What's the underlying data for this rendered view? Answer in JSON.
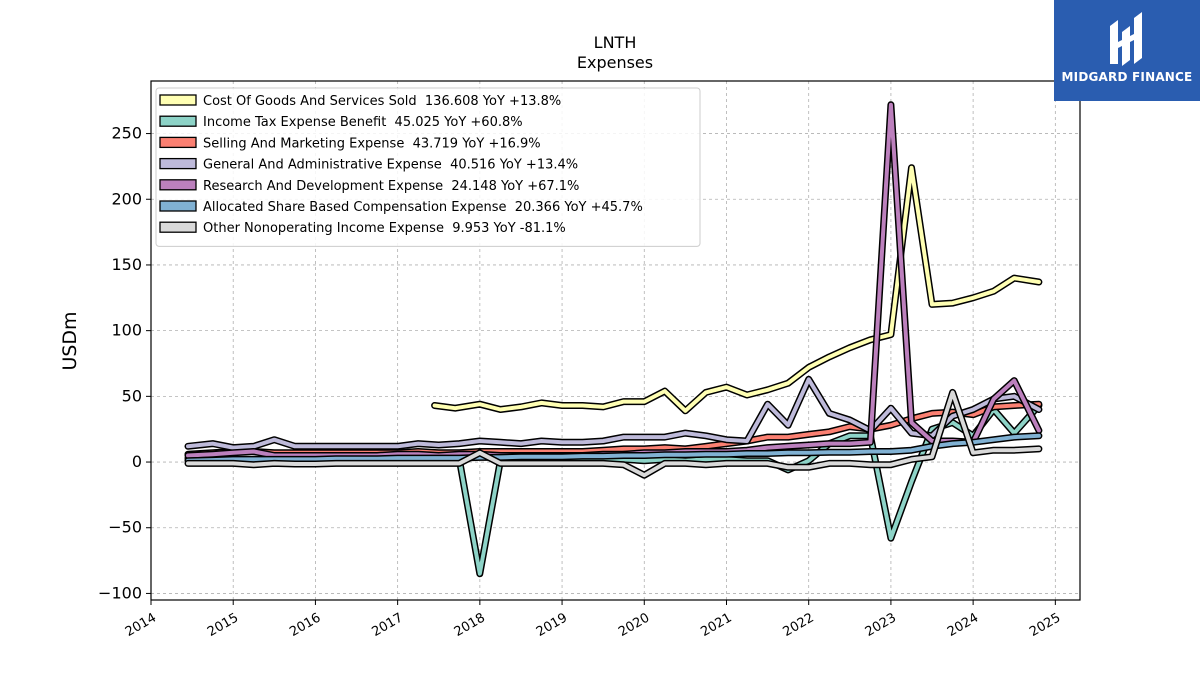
{
  "chart_data": {
    "type": "line",
    "title": "LNTH",
    "subtitle": "Expenses",
    "ylabel": "USDm",
    "xlabel": "",
    "x_ticks": [
      "2014",
      "2015",
      "2016",
      "2017",
      "2018",
      "2019",
      "2020",
      "2021",
      "2022",
      "2023",
      "2024",
      "2025"
    ],
    "y_ticks": [
      "250",
      "200",
      "150",
      "100",
      "50",
      "0",
      "−50",
      "−100"
    ],
    "xlim": [
      2014.0,
      2025.3
    ],
    "ylim": [
      -105,
      290
    ],
    "grid": true,
    "legend_position": "top-left",
    "series": [
      {
        "name": "Cost Of Goods And Services Sold",
        "legend": "Cost Of Goods And Services Sold  136.608 YoY +13.8%",
        "color": "#ffffb3",
        "points": [
          [
            2017.45,
            43
          ],
          [
            2017.7,
            41
          ],
          [
            2018.0,
            44
          ],
          [
            2018.25,
            40
          ],
          [
            2018.5,
            42
          ],
          [
            2018.75,
            45
          ],
          [
            2019.0,
            43
          ],
          [
            2019.25,
            43
          ],
          [
            2019.5,
            42
          ],
          [
            2019.75,
            46
          ],
          [
            2020.0,
            46
          ],
          [
            2020.25,
            54
          ],
          [
            2020.5,
            39
          ],
          [
            2020.75,
            53
          ],
          [
            2021.0,
            57
          ],
          [
            2021.25,
            51
          ],
          [
            2021.5,
            55
          ],
          [
            2021.75,
            60
          ],
          [
            2022.0,
            72
          ],
          [
            2022.25,
            80
          ],
          [
            2022.5,
            87
          ],
          [
            2022.75,
            93
          ],
          [
            2023.0,
            97
          ],
          [
            2023.25,
            224
          ],
          [
            2023.5,
            120
          ],
          [
            2023.75,
            121
          ],
          [
            2024.0,
            125
          ],
          [
            2024.25,
            130
          ],
          [
            2024.5,
            140
          ],
          [
            2024.8,
            137
          ]
        ]
      },
      {
        "name": "Income Tax Expense Benefit",
        "legend": "Income Tax Expense Benefit  45.025 YoY +60.8%",
        "color": "#8dd3c7",
        "points": [
          [
            2014.45,
            3
          ],
          [
            2014.75,
            2
          ],
          [
            2015.0,
            1
          ],
          [
            2015.25,
            2
          ],
          [
            2015.5,
            1
          ],
          [
            2015.75,
            1
          ],
          [
            2016.0,
            1
          ],
          [
            2016.25,
            2
          ],
          [
            2016.5,
            1
          ],
          [
            2016.75,
            2
          ],
          [
            2017.0,
            2
          ],
          [
            2017.25,
            1
          ],
          [
            2017.5,
            2
          ],
          [
            2017.75,
            2
          ],
          [
            2018.0,
            -85
          ],
          [
            2018.25,
            1
          ],
          [
            2018.5,
            2
          ],
          [
            2018.75,
            2
          ],
          [
            2019.0,
            1
          ],
          [
            2019.25,
            2
          ],
          [
            2019.5,
            2
          ],
          [
            2019.75,
            2
          ],
          [
            2020.0,
            1
          ],
          [
            2020.25,
            2
          ],
          [
            2020.5,
            1
          ],
          [
            2020.75,
            2
          ],
          [
            2021.0,
            2
          ],
          [
            2021.25,
            1
          ],
          [
            2021.5,
            1
          ],
          [
            2021.75,
            -6
          ],
          [
            2022.0,
            1
          ],
          [
            2022.25,
            14
          ],
          [
            2022.5,
            20
          ],
          [
            2022.75,
            20
          ],
          [
            2023.0,
            -58
          ],
          [
            2023.25,
            -15
          ],
          [
            2023.5,
            25
          ],
          [
            2023.75,
            30
          ],
          [
            2024.0,
            20
          ],
          [
            2024.25,
            40
          ],
          [
            2024.5,
            22
          ],
          [
            2024.8,
            43
          ]
        ]
      },
      {
        "name": "Selling And Marketing Expense",
        "legend": "Selling And Marketing Expense  43.719 YoY +16.9%",
        "color": "#fb8072",
        "points": [
          [
            2014.45,
            6
          ],
          [
            2014.75,
            7
          ],
          [
            2015.0,
            8
          ],
          [
            2015.25,
            8
          ],
          [
            2015.5,
            7
          ],
          [
            2015.75,
            7
          ],
          [
            2016.0,
            7
          ],
          [
            2016.25,
            7
          ],
          [
            2016.5,
            7
          ],
          [
            2016.75,
            7
          ],
          [
            2017.0,
            7
          ],
          [
            2017.25,
            8
          ],
          [
            2017.5,
            7
          ],
          [
            2017.75,
            7
          ],
          [
            2018.0,
            8
          ],
          [
            2018.25,
            8
          ],
          [
            2018.5,
            8
          ],
          [
            2018.75,
            8
          ],
          [
            2019.0,
            8
          ],
          [
            2019.25,
            8
          ],
          [
            2019.5,
            9
          ],
          [
            2019.75,
            10
          ],
          [
            2020.0,
            10
          ],
          [
            2020.25,
            11
          ],
          [
            2020.5,
            10
          ],
          [
            2020.75,
            12
          ],
          [
            2021.0,
            14
          ],
          [
            2021.25,
            16
          ],
          [
            2021.5,
            19
          ],
          [
            2021.75,
            19
          ],
          [
            2022.0,
            21
          ],
          [
            2022.25,
            23
          ],
          [
            2022.5,
            27
          ],
          [
            2022.75,
            25
          ],
          [
            2023.0,
            28
          ],
          [
            2023.25,
            33
          ],
          [
            2023.5,
            37
          ],
          [
            2023.75,
            38
          ],
          [
            2024.0,
            36
          ],
          [
            2024.25,
            42
          ],
          [
            2024.5,
            43
          ],
          [
            2024.8,
            44
          ]
        ]
      },
      {
        "name": "General And Administrative Expense",
        "legend": "General And Administrative Expense  40.516 YoY +13.4%",
        "color": "#bebada",
        "points": [
          [
            2014.45,
            12
          ],
          [
            2014.75,
            14
          ],
          [
            2015.0,
            11
          ],
          [
            2015.25,
            12
          ],
          [
            2015.5,
            17
          ],
          [
            2015.75,
            12
          ],
          [
            2016.0,
            12
          ],
          [
            2016.25,
            12
          ],
          [
            2016.5,
            12
          ],
          [
            2016.75,
            12
          ],
          [
            2017.0,
            12
          ],
          [
            2017.25,
            14
          ],
          [
            2017.5,
            13
          ],
          [
            2017.75,
            14
          ],
          [
            2018.0,
            16
          ],
          [
            2018.25,
            15
          ],
          [
            2018.5,
            14
          ],
          [
            2018.75,
            16
          ],
          [
            2019.0,
            15
          ],
          [
            2019.25,
            15
          ],
          [
            2019.5,
            16
          ],
          [
            2019.75,
            19
          ],
          [
            2020.0,
            19
          ],
          [
            2020.25,
            19
          ],
          [
            2020.5,
            22
          ],
          [
            2020.75,
            20
          ],
          [
            2021.0,
            17
          ],
          [
            2021.25,
            16
          ],
          [
            2021.5,
            44
          ],
          [
            2021.75,
            28
          ],
          [
            2022.0,
            63
          ],
          [
            2022.25,
            37
          ],
          [
            2022.5,
            32
          ],
          [
            2022.75,
            24
          ],
          [
            2023.0,
            41
          ],
          [
            2023.25,
            22
          ],
          [
            2023.5,
            20
          ],
          [
            2023.75,
            35
          ],
          [
            2024.0,
            40
          ],
          [
            2024.25,
            48
          ],
          [
            2024.5,
            50
          ],
          [
            2024.8,
            40
          ]
        ]
      },
      {
        "name": "Research And Development Expense",
        "legend": "Research And Development Expense  24.148 YoY +67.1%",
        "color": "#bc80bd",
        "points": [
          [
            2014.45,
            5
          ],
          [
            2014.75,
            6
          ],
          [
            2015.0,
            7
          ],
          [
            2015.25,
            8
          ],
          [
            2015.5,
            5
          ],
          [
            2015.75,
            5
          ],
          [
            2016.0,
            5
          ],
          [
            2016.25,
            5
          ],
          [
            2016.5,
            5
          ],
          [
            2016.75,
            5
          ],
          [
            2017.0,
            6
          ],
          [
            2017.25,
            6
          ],
          [
            2017.5,
            5
          ],
          [
            2017.75,
            6
          ],
          [
            2018.0,
            6
          ],
          [
            2018.25,
            5
          ],
          [
            2018.5,
            5
          ],
          [
            2018.75,
            5
          ],
          [
            2019.0,
            5
          ],
          [
            2019.25,
            5
          ],
          [
            2019.5,
            6
          ],
          [
            2019.75,
            6
          ],
          [
            2020.0,
            7
          ],
          [
            2020.25,
            7
          ],
          [
            2020.5,
            8
          ],
          [
            2020.75,
            8
          ],
          [
            2021.0,
            8
          ],
          [
            2021.25,
            9
          ],
          [
            2021.5,
            11
          ],
          [
            2021.75,
            12
          ],
          [
            2022.0,
            13
          ],
          [
            2022.25,
            14
          ],
          [
            2022.5,
            14
          ],
          [
            2022.75,
            15
          ],
          [
            2023.0,
            272
          ],
          [
            2023.25,
            30
          ],
          [
            2023.5,
            16
          ],
          [
            2023.75,
            16
          ],
          [
            2024.0,
            15
          ],
          [
            2024.25,
            48
          ],
          [
            2024.5,
            62
          ],
          [
            2024.8,
            24
          ]
        ]
      },
      {
        "name": "Allocated Share Based Compensation Expense",
        "legend": "Allocated Share Based Compensation Expense  20.366 YoY +45.7%",
        "color": "#80b1d3",
        "points": [
          [
            2014.45,
            1
          ],
          [
            2014.75,
            1.5
          ],
          [
            2015.0,
            2
          ],
          [
            2015.25,
            2
          ],
          [
            2015.5,
            2
          ],
          [
            2015.75,
            2
          ],
          [
            2016.0,
            2
          ],
          [
            2016.25,
            2.5
          ],
          [
            2016.5,
            2.5
          ],
          [
            2016.75,
            2.5
          ],
          [
            2017.0,
            3
          ],
          [
            2017.25,
            3
          ],
          [
            2017.5,
            3
          ],
          [
            2017.75,
            3
          ],
          [
            2018.0,
            3.5
          ],
          [
            2018.25,
            3.5
          ],
          [
            2018.5,
            4
          ],
          [
            2018.75,
            4
          ],
          [
            2019.0,
            4
          ],
          [
            2019.25,
            4.5
          ],
          [
            2019.5,
            4.5
          ],
          [
            2019.75,
            5
          ],
          [
            2020.0,
            5
          ],
          [
            2020.25,
            5.5
          ],
          [
            2020.5,
            5.5
          ],
          [
            2020.75,
            6
          ],
          [
            2021.0,
            6
          ],
          [
            2021.25,
            6.5
          ],
          [
            2021.5,
            6.5
          ],
          [
            2021.75,
            7
          ],
          [
            2022.0,
            7
          ],
          [
            2022.25,
            7.5
          ],
          [
            2022.5,
            7.5
          ],
          [
            2022.75,
            8
          ],
          [
            2023.0,
            8
          ],
          [
            2023.25,
            9
          ],
          [
            2023.5,
            12
          ],
          [
            2023.75,
            14
          ],
          [
            2024.0,
            15
          ],
          [
            2024.25,
            17
          ],
          [
            2024.5,
            19
          ],
          [
            2024.8,
            20
          ]
        ]
      },
      {
        "name": "Other Nonoperating Income Expense",
        "legend": "Other Nonoperating Income Expense  9.953 YoY -81.1%",
        "color": "#d9d9d9",
        "points": [
          [
            2014.45,
            -1
          ],
          [
            2014.75,
            -1
          ],
          [
            2015.0,
            -1
          ],
          [
            2015.25,
            -2
          ],
          [
            2015.5,
            -1
          ],
          [
            2015.75,
            -1.5
          ],
          [
            2016.0,
            -1.5
          ],
          [
            2016.25,
            -1
          ],
          [
            2016.5,
            -1
          ],
          [
            2016.75,
            -1
          ],
          [
            2017.0,
            -1
          ],
          [
            2017.25,
            -1
          ],
          [
            2017.5,
            -1
          ],
          [
            2017.75,
            -1
          ],
          [
            2018.0,
            7
          ],
          [
            2018.25,
            -1
          ],
          [
            2018.5,
            -1
          ],
          [
            2018.75,
            -1
          ],
          [
            2019.0,
            -1
          ],
          [
            2019.25,
            -1
          ],
          [
            2019.5,
            -1
          ],
          [
            2019.75,
            -2
          ],
          [
            2020.0,
            -10
          ],
          [
            2020.25,
            -1
          ],
          [
            2020.5,
            -1
          ],
          [
            2020.75,
            -2
          ],
          [
            2021.0,
            -1
          ],
          [
            2021.25,
            -1
          ],
          [
            2021.5,
            -1
          ],
          [
            2021.75,
            -4
          ],
          [
            2022.0,
            -4
          ],
          [
            2022.25,
            -1
          ],
          [
            2022.5,
            -1
          ],
          [
            2022.75,
            -2
          ],
          [
            2023.0,
            -2
          ],
          [
            2023.25,
            2
          ],
          [
            2023.5,
            4
          ],
          [
            2023.75,
            53
          ],
          [
            2024.0,
            7
          ],
          [
            2024.25,
            9
          ],
          [
            2024.5,
            9
          ],
          [
            2024.8,
            10
          ]
        ]
      }
    ]
  },
  "branding": {
    "logo_text": "MIDGARD FINANCE",
    "logo_color": "#2a5db0"
  }
}
